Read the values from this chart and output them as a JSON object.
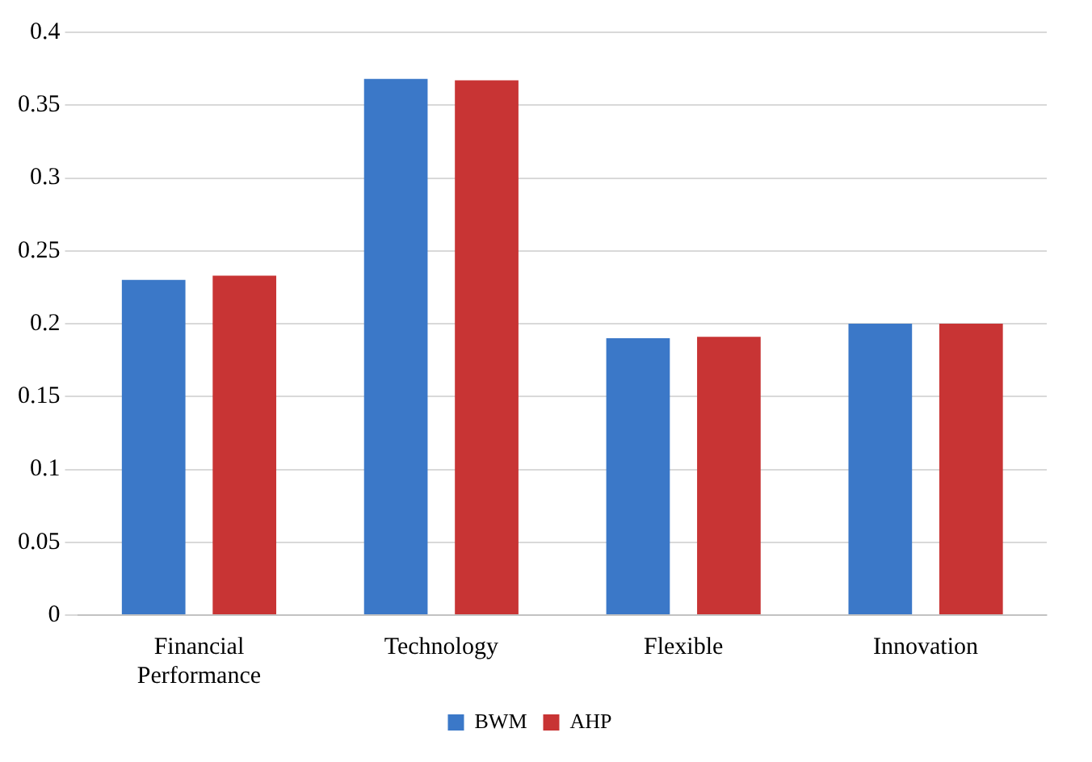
{
  "chart_data": {
    "type": "bar",
    "categories": [
      "Financial Performance",
      "Technology",
      "Flexible",
      "Innovation"
    ],
    "series": [
      {
        "name": "BWM",
        "color": "#3b78c8",
        "values": [
          0.23,
          0.368,
          0.19,
          0.2
        ]
      },
      {
        "name": "AHP",
        "color": "#c83434",
        "values": [
          0.233,
          0.367,
          0.191,
          0.2
        ]
      }
    ],
    "ylim": [
      0,
      0.4
    ],
    "yticks": [
      0,
      0.05,
      0.1,
      0.15,
      0.2,
      0.25,
      0.3,
      0.35,
      0.4
    ],
    "grid": "y",
    "legend": "bottom"
  }
}
